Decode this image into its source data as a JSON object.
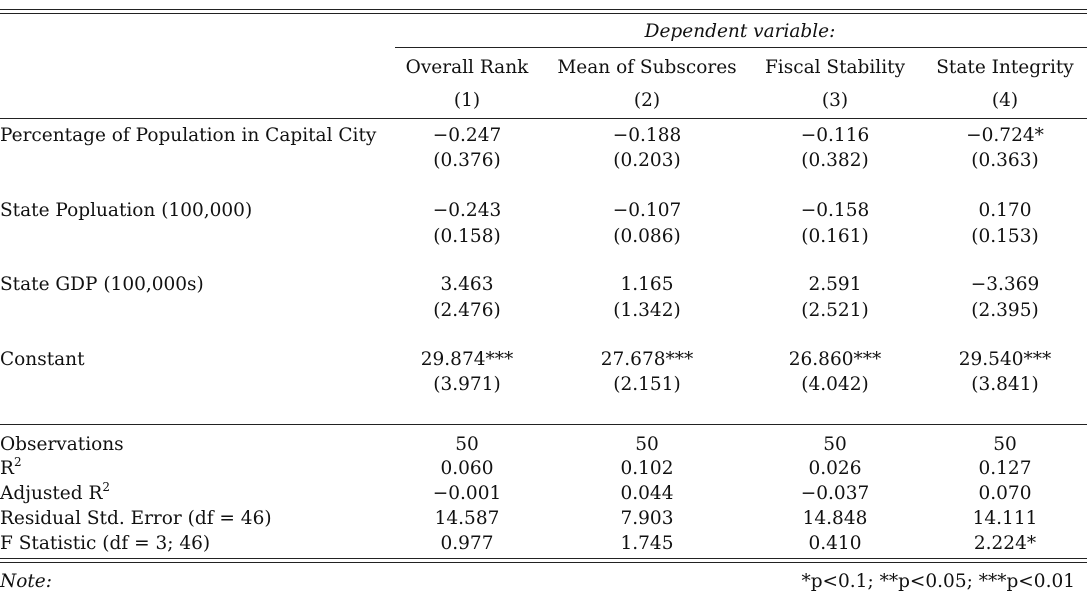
{
  "table": {
    "dependent_variable_label": "Dependent variable:",
    "columns": [
      {
        "name": "Overall Rank",
        "number": "(1)"
      },
      {
        "name": "Mean of Subscores",
        "number": "(2)"
      },
      {
        "name": "Fiscal Stability",
        "number": "(3)"
      },
      {
        "name": "State Integrity",
        "number": "(4)"
      }
    ],
    "coefficients": [
      {
        "label": "Percentage of Population in Capital City",
        "estimates": [
          "−0.247",
          "−0.188",
          "−0.116",
          "−0.724*"
        ],
        "std_errors": [
          "(0.376)",
          "(0.203)",
          "(0.382)",
          "(0.363)"
        ]
      },
      {
        "label": "State Popluation (100,000)",
        "estimates": [
          "−0.243",
          "−0.107",
          "−0.158",
          "0.170"
        ],
        "std_errors": [
          "(0.158)",
          "(0.086)",
          "(0.161)",
          "(0.153)"
        ]
      },
      {
        "label": "State GDP (100,000s)",
        "estimates": [
          "3.463",
          "1.165",
          "2.591",
          "−3.369"
        ],
        "std_errors": [
          "(2.476)",
          "(1.342)",
          "(2.521)",
          "(2.395)"
        ]
      },
      {
        "label": "Constant",
        "estimates": [
          "29.874***",
          "27.678***",
          "26.860***",
          "29.540***"
        ],
        "std_errors": [
          "(3.971)",
          "(2.151)",
          "(4.042)",
          "(3.841)"
        ]
      }
    ],
    "statistics": [
      {
        "label": "Observations",
        "values": [
          "50",
          "50",
          "50",
          "50"
        ]
      },
      {
        "label": "R",
        "superscript": "2",
        "values": [
          "0.060",
          "0.102",
          "0.026",
          "0.127"
        ]
      },
      {
        "label": "Adjusted R",
        "superscript": "2",
        "values": [
          "−0.001",
          "0.044",
          "−0.037",
          "0.070"
        ]
      },
      {
        "label": "Residual Std. Error (df = 46)",
        "values": [
          "14.587",
          "7.903",
          "14.848",
          "14.111"
        ]
      },
      {
        "label": "F Statistic (df = 3; 46)",
        "values": [
          "0.977",
          "1.745",
          "0.410",
          "2.224*"
        ]
      }
    ],
    "note_label": "Note:",
    "note_text": "*p<0.1; **p<0.05; ***p<0.01"
  }
}
